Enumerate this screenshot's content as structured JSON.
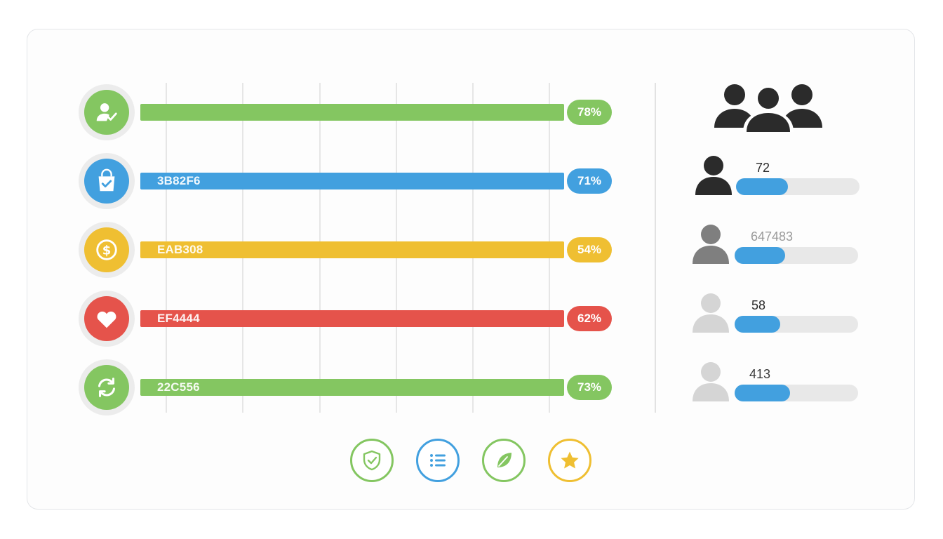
{
  "colors": {
    "green": "#84C661",
    "blue": "#42A0DF",
    "yellow": "#EFBF32",
    "red": "#E5534B",
    "dark": "#2B2B2B",
    "grey": "#7F7F7F",
    "light_grey": "#D5D5D5"
  },
  "categories": [
    {
      "icon": "user-check-icon",
      "label": "",
      "value": "78%",
      "color": "#84C661",
      "fill": 1.0
    },
    {
      "icon": "shopping-bag-icon",
      "label": "3B82F6",
      "value": "71%",
      "color": "#42A0DF",
      "fill": 1.0
    },
    {
      "icon": "dollar-coin-icon",
      "label": "EAB308",
      "value": "54%",
      "color": "#EFBF32",
      "fill": 1.0
    },
    {
      "icon": "heart-icon",
      "label": "EF4444",
      "value": "62%",
      "color": "#E5534B",
      "fill": 1.0
    },
    {
      "icon": "refresh-icon",
      "label": "22C556",
      "value": "73%",
      "color": "#84C661",
      "fill": 1.0
    }
  ],
  "group_icon": "users-group-icon",
  "users": [
    {
      "icon": "user-icon",
      "value": "72",
      "value_color": "#2B2B2B",
      "avatar_color": "#2B2B2B",
      "progress": 0.42
    },
    {
      "icon": "user-icon",
      "value": "647483",
      "value_color": "#9A9A9A",
      "avatar_color": "#7F7F7F",
      "progress": 0.41
    },
    {
      "icon": "user-icon",
      "value": "58",
      "value_color": "#2B2B2B",
      "avatar_color": "#D5D5D5",
      "progress": 0.37
    },
    {
      "icon": "user-icon",
      "value": "413",
      "value_color": "#3A3A3A",
      "avatar_color": "#D5D5D5",
      "progress": 0.45
    }
  ],
  "bottom_icons": [
    {
      "icon": "shield-check-icon",
      "color": "#84C661"
    },
    {
      "icon": "list-icon",
      "color": "#42A0DF"
    },
    {
      "icon": "leaf-icon",
      "color": "#84C661"
    },
    {
      "icon": "star-icon",
      "color": "#EFBF32"
    }
  ]
}
